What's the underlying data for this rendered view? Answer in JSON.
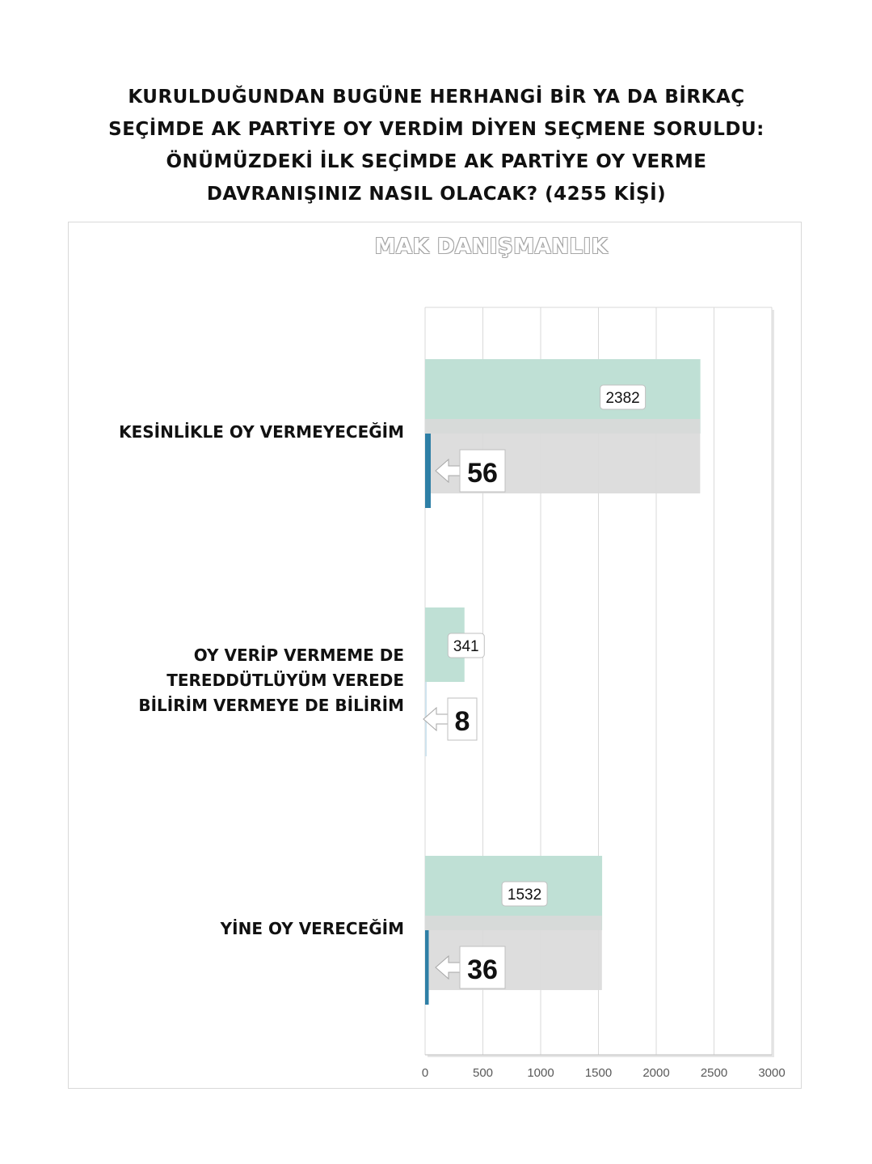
{
  "title_lines": [
    "KURULDUĞUNDAN BUGÜNE HERHANGİ BİR YA DA BİRKAÇ",
    "SEÇİMDE AK PARTİYE OY VERDİM DİYEN SEÇMENE SORULDU:",
    "ÖNÜMÜZDEKİ İLK SEÇİMDE AK PARTİYE OY VERME",
    "DAVRANIŞINIZ NASIL OLACAK? (4255 KİŞİ)"
  ],
  "watermark": "MAK DANIŞMANLIK",
  "colors": {
    "primary_bar": "#bfe0d5",
    "secondary_bar": "#d9d9d9",
    "accent_bar": "#2e7fa6",
    "grid": "#d9d9d9",
    "text": "#111111"
  },
  "chart_data": {
    "type": "bar",
    "orientation": "horizontal",
    "categories": [
      "KESİNLİKLE OY VERMEYECEĞİM",
      "OY VERİP VERMEME  DE\nTEREDDÜTLÜYÜM VEREDE\nBİLİRİM VERMEYE DE BİLİRİM",
      "YİNE OY VERECEĞİM"
    ],
    "series": [
      {
        "values": [
          2382,
          341,
          1532
        ],
        "data_labels": [
          "2382",
          "341",
          "1532"
        ]
      },
      {
        "values": [
          56,
          8,
          36
        ],
        "data_labels": [
          "56",
          "8",
          "36"
        ]
      }
    ],
    "xlim": [
      0,
      3000
    ],
    "x_ticks": [
      "0",
      "500",
      "1000",
      "1500",
      "2000",
      "2500",
      "3000"
    ],
    "grid": true,
    "legend": "none"
  }
}
